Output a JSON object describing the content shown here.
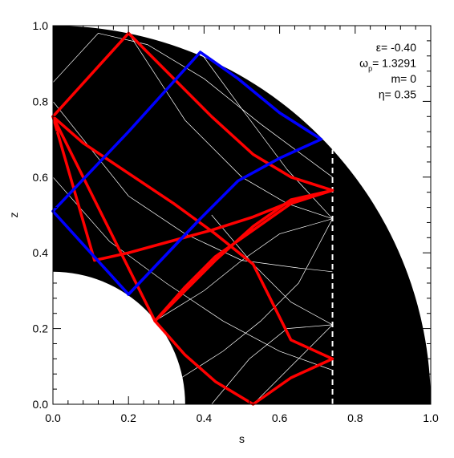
{
  "chart_data": {
    "type": "line",
    "xlabel": "s",
    "ylabel": "z",
    "xlim": [
      0.0,
      1.0
    ],
    "ylim": [
      0.0,
      1.0
    ],
    "xticks": [
      "0.0",
      "0.2",
      "0.4",
      "0.6",
      "0.8",
      "1.0"
    ],
    "yticks": [
      "0.0",
      "0.2",
      "0.4",
      "0.6",
      "0.8",
      "1.0"
    ],
    "grid": false,
    "colors": {
      "domain": "#000000",
      "inner_core": "#ffffff",
      "characteristics": "#ffffff",
      "red_orbit": "#ff0000",
      "blue_orbit": "#0000ff",
      "critical_line": "#ffffff"
    },
    "domain": {
      "outer_radius": 1.0,
      "inner_radius": 0.35
    },
    "critical_s": 0.74,
    "annotations": [
      {
        "prefix": "ε",
        "subscript": "",
        "text": "= -0.40"
      },
      {
        "prefix": "ω",
        "subscript": "p",
        "text": "= 1.3291"
      },
      {
        "prefix": "",
        "subscript": "",
        "text": "m= 0"
      },
      {
        "prefix": "η",
        "subscript": "",
        "text": "= 0.35"
      }
    ],
    "series": [
      {
        "color": "#ff0000",
        "x": [
          0.0,
          0.2,
          0.31,
          0.42,
          0.53,
          0.63,
          0.74,
          0.63,
          0.53,
          0.42,
          0.31,
          0.2,
          0.11,
          0.0
        ],
        "y": [
          0.76,
          0.98,
          0.87,
          0.76,
          0.66,
          0.6,
          0.565,
          0.535,
          0.495,
          0.46,
          0.43,
          0.4,
          0.38,
          0.76
        ]
      },
      {
        "color": "#ff0000",
        "x": [
          0.0,
          0.08,
          0.2,
          0.32,
          0.43,
          0.53,
          0.63,
          0.74,
          0.63,
          0.53,
          0.43,
          0.35,
          0.27,
          0.0
        ],
        "y": [
          0.76,
          0.69,
          0.61,
          0.53,
          0.45,
          0.37,
          0.17,
          0.12,
          0.07,
          0.0,
          0.06,
          0.13,
          0.22,
          0.76
        ]
      },
      {
        "color": "#ff0000",
        "x": [
          0.27,
          0.35,
          0.43,
          0.53,
          0.63,
          0.74,
          0.63,
          0.53,
          0.43,
          0.35,
          0.27
        ],
        "y": [
          0.22,
          0.3,
          0.38,
          0.47,
          0.54,
          0.565,
          0.53,
          0.46,
          0.39,
          0.31,
          0.22
        ]
      },
      {
        "color": "#0000ff",
        "x": [
          0.0,
          0.2,
          0.39,
          0.49,
          0.6,
          0.71,
          0.6,
          0.49,
          0.39,
          0.2,
          0.0
        ],
        "y": [
          0.51,
          0.29,
          0.49,
          0.59,
          0.65,
          0.7,
          0.77,
          0.86,
          0.93,
          0.72,
          0.51
        ]
      },
      {
        "color": "#0000ff",
        "x": [
          0.2,
          0.39
        ],
        "y": [
          0.29,
          0.49
        ]
      }
    ],
    "characteristic_lines": [
      {
        "x": [
          0.0,
          0.12,
          0.25,
          0.4,
          0.55,
          0.74
        ],
        "y": [
          0.85,
          0.98,
          0.95,
          0.86,
          0.74,
          0.6
        ]
      },
      {
        "x": [
          0.0,
          0.15,
          0.3,
          0.45,
          0.6,
          0.74
        ],
        "y": [
          0.6,
          0.43,
          0.32,
          0.22,
          0.14,
          0.09
        ]
      },
      {
        "x": [
          0.0,
          0.2,
          0.35,
          0.5,
          0.65,
          0.74
        ],
        "y": [
          0.8,
          0.55,
          0.45,
          0.38,
          0.36,
          0.35
        ]
      },
      {
        "x": [
          0.2,
          0.35,
          0.5,
          0.62,
          0.74
        ],
        "y": [
          0.98,
          0.75,
          0.6,
          0.53,
          0.49
        ]
      },
      {
        "x": [
          0.39,
          0.5,
          0.62,
          0.74
        ],
        "y": [
          0.93,
          0.78,
          0.62,
          0.49
        ]
      },
      {
        "x": [
          0.27,
          0.4,
          0.5,
          0.6,
          0.74
        ],
        "y": [
          0.22,
          0.3,
          0.38,
          0.45,
          0.49
        ]
      },
      {
        "x": [
          0.34,
          0.45,
          0.55,
          0.65,
          0.74
        ],
        "y": [
          0.07,
          0.14,
          0.22,
          0.32,
          0.49
        ]
      },
      {
        "x": [
          0.42,
          0.52,
          0.62,
          0.74
        ],
        "y": [
          0.0,
          0.12,
          0.2,
          0.21
        ]
      },
      {
        "x": [
          0.53,
          0.63,
          0.74
        ],
        "y": [
          0.0,
          0.1,
          0.21
        ]
      },
      {
        "x": [
          0.74,
          0.63,
          0.53,
          0.42
        ],
        "y": [
          0.21,
          0.27,
          0.37,
          0.5
        ]
      }
    ]
  }
}
